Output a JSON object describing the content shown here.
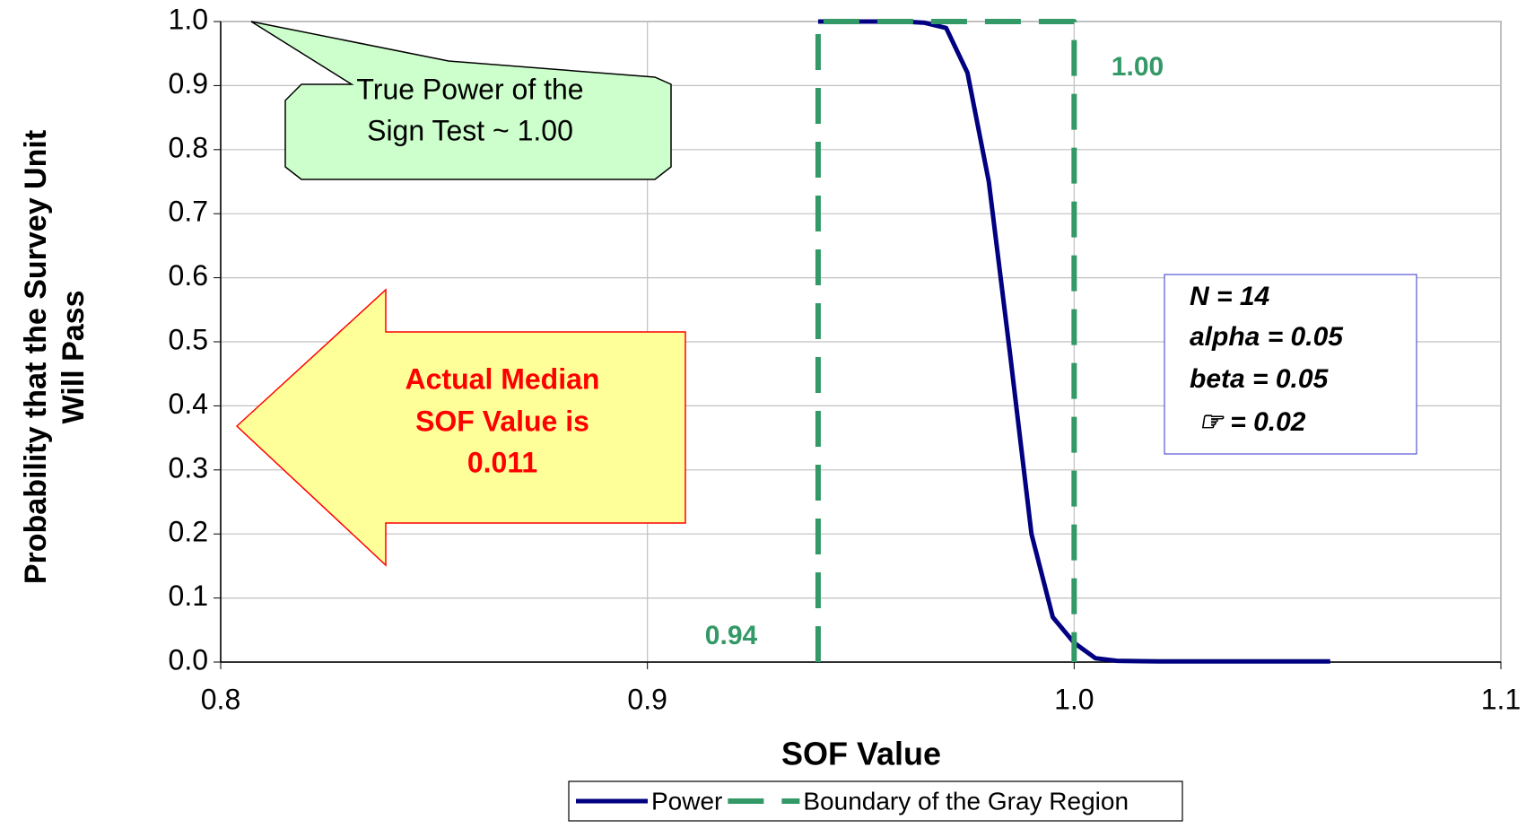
{
  "chart_data": {
    "type": "line",
    "xlabel": "SOF Value",
    "ylabel": [
      "Probability that the Survey Unit",
      "Will Pass"
    ],
    "xlim": [
      0.8,
      1.1
    ],
    "ylim": [
      0,
      1
    ],
    "xticks": [
      0.8,
      0.9,
      {
        "value": 1,
        "label": "1.0"
      },
      1.1
    ],
    "yticks": [
      {
        "value": 0,
        "label": "0.0"
      },
      0.1,
      0.2,
      0.3,
      0.4,
      0.5,
      0.6,
      0.7,
      0.8,
      0.9,
      {
        "value": 1,
        "label": "1.0"
      }
    ],
    "grid": true,
    "legend": "bottom",
    "series": [
      {
        "name": "Power",
        "color": "#000080",
        "x": [
          0.94,
          0.95,
          0.96,
          0.965,
          0.97,
          0.975,
          0.98,
          0.985,
          0.99,
          0.995,
          1.0,
          1.005,
          1.01,
          1.02,
          1.04,
          1.06
        ],
        "values": [
          1,
          1,
          1,
          0.998,
          0.99,
          0.92,
          0.75,
          0.48,
          0.2,
          0.07,
          0.03,
          0.006,
          0.002,
          0.001,
          0.001,
          0.001
        ]
      },
      {
        "name": "Boundary of the Gray Region",
        "color": "#339966",
        "dashed": true,
        "x": [
          0.94,
          0.94,
          1.0,
          1.0
        ],
        "values": [
          0,
          1,
          1,
          0
        ]
      }
    ],
    "annotations": {
      "lbg": "0.94",
      "ubgr": "1.00",
      "callout": [
        "True Power of the",
        "Sign Test ~ 1.00"
      ],
      "arrow": [
        "Actual Median",
        "SOF Value is",
        "0.011"
      ],
      "params": [
        "N =  14",
        "alpha = 0.05",
        "beta = 0.05",
        "☞ = 0.02"
      ]
    }
  }
}
